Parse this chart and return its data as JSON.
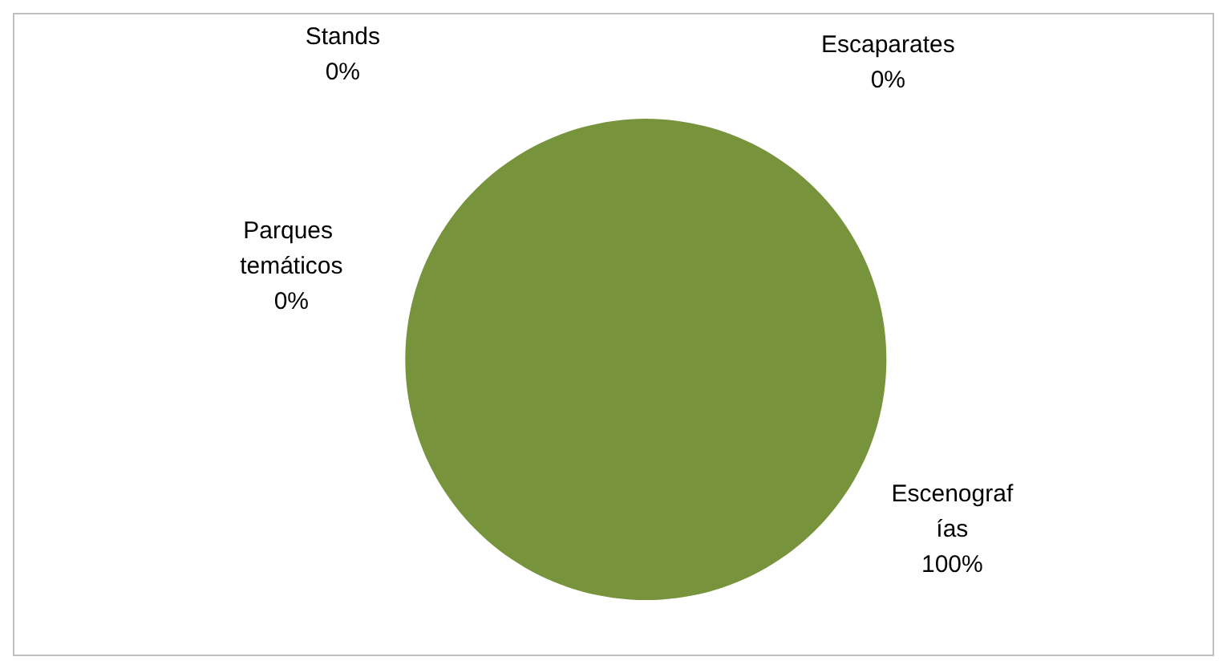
{
  "chart_data": {
    "type": "pie",
    "categories": [
      "Escenografías",
      "Parques temáticos",
      "Stands",
      "Escaparates"
    ],
    "values": [
      100,
      0,
      0,
      0
    ],
    "colors": [
      "#77933c",
      "#4f81bd",
      "#c0504d",
      "#8064a2"
    ],
    "value_labels": [
      "100%",
      "0%",
      "0%",
      "0%"
    ],
    "legend": false
  }
}
